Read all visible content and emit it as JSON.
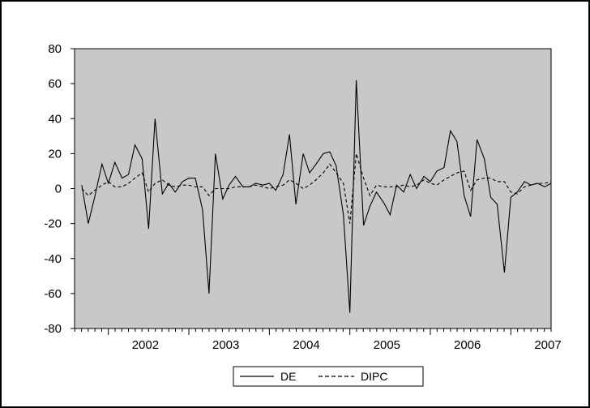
{
  "chart_data": {
    "type": "line",
    "title": "",
    "xlabel": "",
    "ylabel": "",
    "ylim": [
      -80,
      80
    ],
    "yticks": [
      80,
      60,
      40,
      20,
      0,
      -20,
      -40,
      -60,
      -80
    ],
    "xlim": [
      2001.58,
      2007.5
    ],
    "xticks": [
      "2002",
      "2003",
      "2004",
      "2005",
      "2006",
      "2007"
    ],
    "grid": false,
    "plot_background": "#c8c8c8",
    "legend": {
      "position": "bottom-center",
      "entries": [
        "DE",
        "DIPC"
      ]
    },
    "series": [
      {
        "name": "DE",
        "style": "solid",
        "color": "#000000",
        "x": [
          2001.67,
          2001.75,
          2001.83,
          2001.92,
          2002.0,
          2002.08,
          2002.17,
          2002.25,
          2002.33,
          2002.42,
          2002.5,
          2002.58,
          2002.67,
          2002.75,
          2002.83,
          2002.92,
          2003.0,
          2003.08,
          2003.17,
          2003.25,
          2003.33,
          2003.42,
          2003.5,
          2003.58,
          2003.67,
          2003.75,
          2003.83,
          2003.92,
          2004.0,
          2004.08,
          2004.17,
          2004.25,
          2004.33,
          2004.42,
          2004.5,
          2004.58,
          2004.67,
          2004.75,
          2004.83,
          2004.92,
          2005.0,
          2005.08,
          2005.17,
          2005.25,
          2005.33,
          2005.42,
          2005.5,
          2005.58,
          2005.67,
          2005.75,
          2005.83,
          2005.92,
          2006.0,
          2006.08,
          2006.17,
          2006.25,
          2006.33,
          2006.42,
          2006.5,
          2006.58,
          2006.67,
          2006.75,
          2006.83,
          2006.92,
          2007.0,
          2007.08,
          2007.17,
          2007.25,
          2007.33,
          2007.42,
          2007.5
        ],
        "y": [
          2,
          -20,
          -5,
          14,
          3,
          15,
          6,
          8,
          25,
          17,
          -23,
          40,
          -3,
          3,
          -2,
          4,
          6,
          6,
          -12,
          -60,
          20,
          -6,
          2,
          7,
          1,
          1,
          3,
          2,
          3,
          -1,
          8,
          31,
          -9,
          20,
          9,
          14,
          20,
          21,
          13,
          -15,
          -71,
          62,
          -21,
          -10,
          -2,
          -8,
          -15,
          2,
          -2,
          8,
          0,
          7,
          4,
          10,
          12,
          33,
          27,
          -4,
          -16,
          28,
          17,
          -5,
          -9,
          -48,
          -5,
          -2,
          4,
          2,
          3,
          1,
          3
        ]
      },
      {
        "name": "DIPC",
        "style": "dashed",
        "color": "#000000",
        "x": [
          2001.67,
          2001.75,
          2001.83,
          2001.92,
          2002.0,
          2002.08,
          2002.17,
          2002.25,
          2002.33,
          2002.42,
          2002.5,
          2002.58,
          2002.67,
          2002.75,
          2002.83,
          2002.92,
          2003.0,
          2003.08,
          2003.17,
          2003.25,
          2003.33,
          2003.42,
          2003.5,
          2003.58,
          2003.67,
          2003.75,
          2003.83,
          2003.92,
          2004.0,
          2004.08,
          2004.17,
          2004.25,
          2004.33,
          2004.42,
          2004.5,
          2004.58,
          2004.67,
          2004.75,
          2004.83,
          2004.92,
          2005.0,
          2005.08,
          2005.17,
          2005.25,
          2005.33,
          2005.42,
          2005.5,
          2005.58,
          2005.67,
          2005.75,
          2005.83,
          2005.92,
          2006.0,
          2006.08,
          2006.17,
          2006.25,
          2006.33,
          2006.42,
          2006.5,
          2006.58,
          2006.67,
          2006.75,
          2006.83,
          2006.92,
          2007.0,
          2007.08,
          2007.17,
          2007.25,
          2007.33,
          2007.42,
          2007.5
        ],
        "y": [
          0,
          -4,
          -1,
          2,
          4,
          1,
          1,
          3,
          6,
          9,
          -2,
          3,
          5,
          2,
          1,
          2,
          2,
          1,
          1,
          -4,
          0,
          0,
          0,
          1,
          1,
          1,
          2,
          1,
          0,
          1,
          2,
          5,
          3,
          0,
          2,
          5,
          9,
          14,
          9,
          3,
          -20,
          20,
          6,
          -4,
          2,
          1,
          1,
          1,
          2,
          1,
          2,
          5,
          3,
          2,
          5,
          7,
          9,
          10,
          -1,
          5,
          6,
          6,
          4,
          4,
          -2,
          -3,
          1,
          2,
          3,
          3,
          4
        ]
      }
    ]
  }
}
